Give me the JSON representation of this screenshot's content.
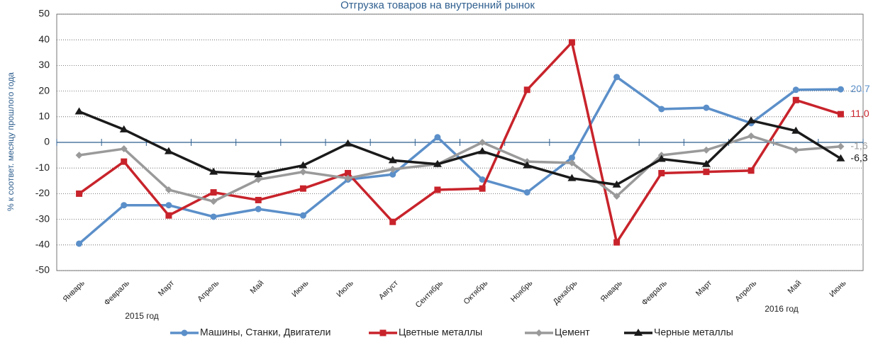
{
  "chart_data": {
    "type": "line",
    "title": "Отгрузка товаров на внутренний рынок",
    "y_label": "% к соответ. месяцу прошлого года",
    "annotations": [
      "2015 год",
      "2016 год"
    ],
    "categories": [
      "Январь",
      "Февраль",
      "Март",
      "Апрель",
      "Май",
      "Июнь",
      "Июль",
      "Август",
      "Сентябрь",
      "Октябрь",
      "Ноябрь",
      "Декабрь",
      "Январь",
      "Февраль",
      "Март",
      "Апрель",
      "Май",
      "Июнь"
    ],
    "ylim": [
      -50,
      50
    ],
    "yticks": [
      -50,
      -40,
      -30,
      -20,
      -10,
      0,
      10,
      20,
      30,
      40,
      50
    ],
    "grid": true,
    "legend": "bottom",
    "series": [
      {
        "name": "Машины, Станки, Двигатели",
        "color": "#5b8fc9",
        "marker": "circle",
        "values": [
          -39.5,
          -24.5,
          -24.5,
          -29,
          -26,
          -28.5,
          -14.5,
          -12.5,
          2,
          -14.5,
          -19.5,
          -6,
          25.5,
          13,
          13.5,
          7.5,
          20.5,
          20.7
        ],
        "value_labels": [
          null,
          null,
          null,
          null,
          null,
          null,
          null,
          null,
          null,
          null,
          null,
          null,
          null,
          null,
          null,
          null,
          null,
          "20,7"
        ]
      },
      {
        "name": "Цветные металлы",
        "color": "#c8232b",
        "marker": "square",
        "values": [
          -20,
          -7.5,
          -28.5,
          -19.5,
          -22.5,
          -18,
          -12,
          -31,
          -18.5,
          -18,
          20.5,
          39,
          -39,
          -12,
          -11.5,
          -11,
          16.5,
          11.0
        ],
        "value_labels": [
          null,
          null,
          null,
          null,
          null,
          null,
          null,
          null,
          null,
          null,
          null,
          null,
          null,
          null,
          null,
          null,
          null,
          "11,0"
        ]
      },
      {
        "name": "Цемент",
        "color": "#9a9a9a",
        "marker": "diamond",
        "values": [
          -5,
          -2.5,
          -18.5,
          -23,
          -14.5,
          -11.5,
          -14,
          -10.5,
          -8.5,
          0,
          -7.5,
          -8,
          -21,
          -5,
          -3,
          2.5,
          -3,
          -1.6
        ],
        "value_labels": [
          null,
          null,
          null,
          null,
          null,
          null,
          null,
          null,
          null,
          null,
          null,
          null,
          null,
          null,
          null,
          null,
          null,
          "-1,6"
        ]
      },
      {
        "name": "Черные металлы",
        "color": "#1a1a1a",
        "marker": "triangle",
        "values": [
          12,
          5,
          -3.5,
          -11.5,
          -12.5,
          -9,
          -0.5,
          -7,
          -8.5,
          -3.5,
          -9,
          -14,
          -16.5,
          -6.5,
          -8.5,
          8.5,
          4.5,
          -6.3
        ],
        "value_labels": [
          null,
          null,
          null,
          null,
          null,
          null,
          null,
          null,
          null,
          null,
          null,
          null,
          null,
          null,
          null,
          null,
          null,
          "-6,3"
        ]
      }
    ]
  }
}
